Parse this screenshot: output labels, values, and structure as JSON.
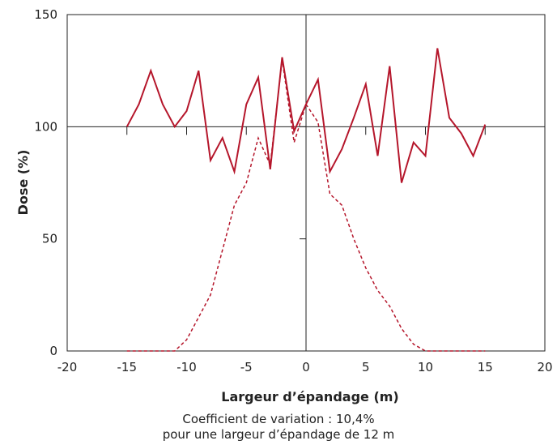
{
  "chart_data": {
    "type": "line",
    "xlabel": "Largeur d’épandage (m)",
    "ylabel": "Dose (%)",
    "xlim": [
      -20,
      20
    ],
    "ylim": [
      0,
      150
    ],
    "xticks": [
      -20,
      -15,
      -10,
      -5,
      0,
      5,
      10,
      15,
      20
    ],
    "xtick_labels": [
      "-20",
      "-15",
      "-10",
      "-5",
      "0",
      "5",
      "10",
      "15",
      "20"
    ],
    "yticks": [
      0,
      50,
      100,
      150
    ],
    "ytick_labels": [
      "0",
      "50",
      "100",
      "150"
    ],
    "reference_line_y": 100,
    "grid": false,
    "series": [
      {
        "style": "solid",
        "color": "#b5162b",
        "x": [
          -15,
          -14,
          -13,
          -12,
          -11,
          -10,
          -9,
          -8,
          -7,
          -6,
          -5,
          -4,
          -3,
          -2,
          -1,
          0,
          1,
          2,
          3,
          4,
          5,
          6,
          7,
          8,
          9,
          10,
          11,
          12,
          13,
          14,
          15
        ],
        "y": [
          100,
          110,
          125,
          110,
          100,
          107,
          125,
          85,
          95,
          80,
          110,
          122,
          81,
          131,
          98,
          110,
          121,
          80,
          90,
          104,
          119,
          87,
          127,
          75,
          93,
          87,
          135,
          104,
          97,
          87,
          101
        ]
      },
      {
        "style": "dashed",
        "color": "#b5162b",
        "x": [
          -15,
          -14,
          -13,
          -12,
          -11,
          -10,
          -9,
          -8,
          -7,
          -6,
          -5,
          -4,
          -3,
          -2,
          -1,
          0,
          1,
          2,
          3,
          4,
          5,
          6,
          7,
          8,
          9,
          10,
          11,
          12,
          13,
          14,
          15
        ],
        "y": [
          0,
          0,
          0,
          0,
          0,
          5,
          15,
          25,
          45,
          65,
          75,
          95,
          83,
          130,
          93,
          110,
          102,
          70,
          65,
          50,
          37,
          27,
          20,
          10,
          3,
          0,
          0,
          0,
          0,
          0,
          0
        ]
      }
    ]
  },
  "caption": {
    "line1": "Coefficient de variation : 10,4%",
    "line2": "pour une largeur d’épandage de 12 m"
  }
}
